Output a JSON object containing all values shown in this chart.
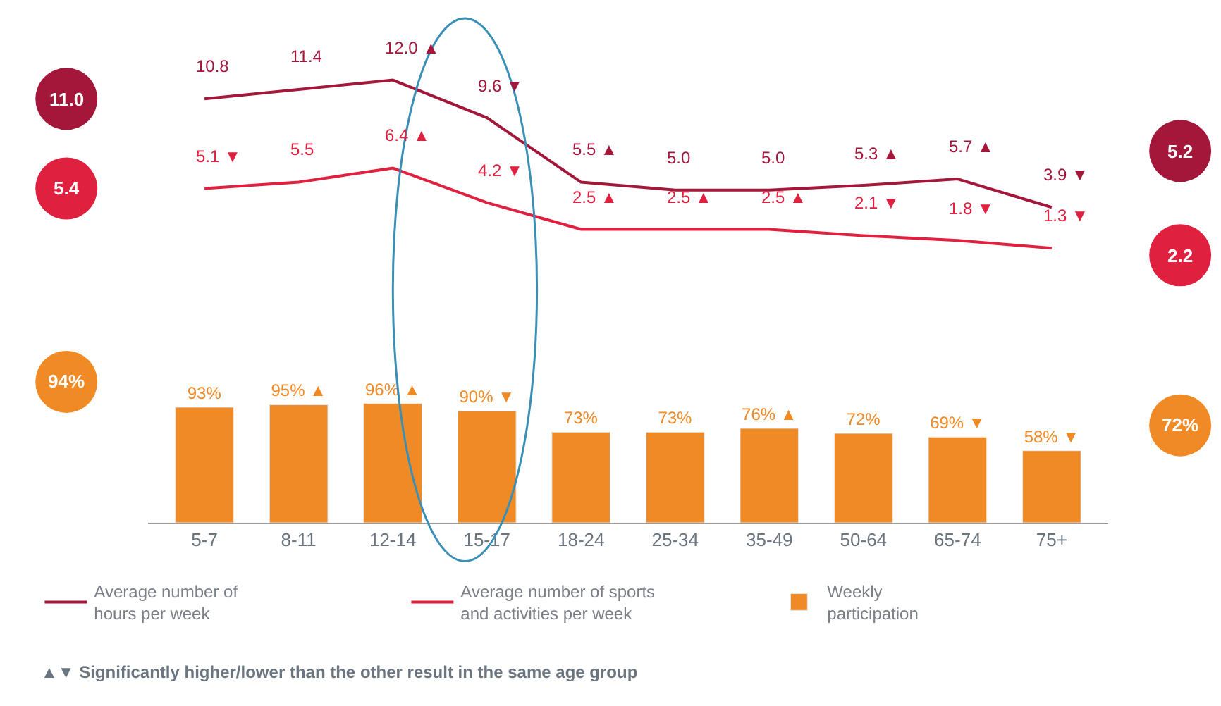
{
  "chart_data": [
    {
      "type": "line",
      "categories": [
        "5-7",
        "8-11",
        "12-14",
        "15-17",
        "18-24",
        "25-34",
        "35-49",
        "50-64",
        "65-74",
        "75+"
      ],
      "series": [
        {
          "name": "Average number of hours per week",
          "color": "#a3173a",
          "values": [
            10.8,
            11.4,
            12.0,
            9.6,
            5.5,
            5.0,
            5.0,
            5.3,
            5.7,
            3.9
          ],
          "value_labels": [
            "10.8",
            "11.4",
            "12.0 ▲",
            "9.6 ▼",
            "5.5 ▲",
            "5.0",
            "5.0",
            "5.3 ▲",
            "5.7 ▲",
            "3.9 ▼"
          ]
        },
        {
          "name": "Average number of sports and activities per week",
          "color": "#e0203f",
          "values": [
            5.1,
            5.5,
            6.4,
            4.2,
            2.5,
            2.5,
            2.5,
            2.1,
            1.8,
            1.3
          ],
          "value_labels": [
            "5.1 ▼",
            "5.5",
            "6.4 ▲",
            "4.2 ▼",
            "2.5 ▲",
            "2.5 ▲",
            "2.5 ▲",
            "2.1 ▼",
            "1.8 ▼",
            "1.3 ▼"
          ]
        }
      ],
      "annotations": [
        "11.0",
        "5.2",
        "5.4",
        "2.2"
      ],
      "legend": "bottom",
      "marker": "none",
      "line_style": "solid",
      "tick_labels": false
    },
    {
      "type": "bar",
      "categories": [
        "5-7",
        "8-11",
        "12-14",
        "15-17",
        "18-24",
        "25-34",
        "35-49",
        "50-64",
        "65-74",
        "75+"
      ],
      "series": [
        {
          "name": "Weekly participation",
          "color": "#f08a24",
          "values": [
            93,
            95,
            96,
            90,
            73,
            73,
            76,
            72,
            69,
            58
          ],
          "value_labels": [
            "93%",
            "95% ▲",
            "96% ▲",
            "90% ▼",
            "73%",
            "73%",
            "76% ▲",
            "72%",
            "69% ▼",
            "58% ▼"
          ]
        }
      ],
      "annotations": [
        "94%",
        "72%",
        "▲▼ Significantly higher/lower than the other result in the same age group"
      ],
      "legend": "bottom"
    }
  ]
}
